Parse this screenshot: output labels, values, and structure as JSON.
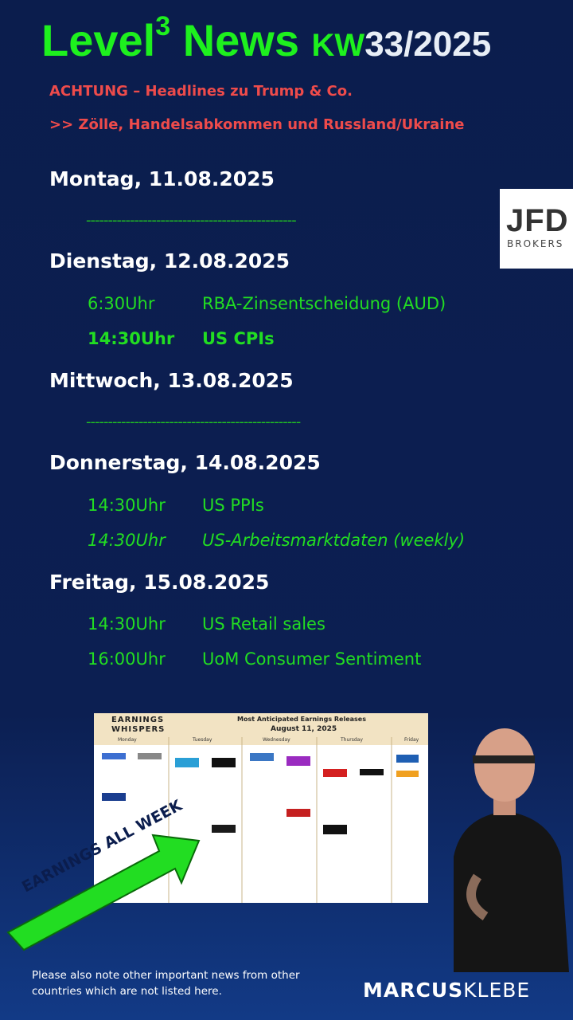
{
  "header": {
    "title_main": "Level",
    "title_sup": "3",
    "title_news": "News",
    "title_kw": "KW",
    "title_week": "33/2025"
  },
  "alerts": [
    "ACHTUNG – Headlines zu Trump & Co.",
    ">> Zölle, Handelsabkommen und Russland/Ukraine"
  ],
  "days": [
    {
      "name": "Montag, 11.08.2025",
      "separator": "------------------------------------------------"
    },
    {
      "name": "Dienstag, 12.08.2025",
      "events": [
        {
          "time": "6:30Uhr",
          "event": "RBA-Zinsentscheidung (AUD)"
        },
        {
          "time": "14:30Uhr",
          "event": "US CPIs"
        }
      ]
    },
    {
      "name": "Mittwoch, 13.08.2025",
      "separator": "-------------------------------------------------"
    },
    {
      "name": "Donnerstag, 14.08.2025",
      "events": [
        {
          "time": "14:30Uhr",
          "event": "US PPIs"
        },
        {
          "time": "14:30Uhr",
          "event": "US-Arbeitsmarktdaten (weekly)"
        }
      ]
    },
    {
      "name": "Freitag, 15.08.2025",
      "events": [
        {
          "time": "14:30Uhr",
          "event": "US Retail sales"
        },
        {
          "time": "16:00Uhr",
          "event": "UoM Consumer Sentiment"
        }
      ]
    }
  ],
  "logo": {
    "brand": "JFD",
    "sub": "BROKERS"
  },
  "earnings": {
    "brand_top": "EARNINGS",
    "brand_bottom": "WHISPERS",
    "title": "Most Anticipated Earnings Releases",
    "date": "August 11, 2025",
    "weekdays": [
      "Monday",
      "Tuesday",
      "Wednesday",
      "Thursday",
      "Friday"
    ],
    "banner": "EARNINGS ALL WEEK"
  },
  "footer": {
    "note": "Please also note other important news from other countries which are not listed here.",
    "brand_bold": "MARCUS",
    "brand_light": "KLEBE"
  }
}
